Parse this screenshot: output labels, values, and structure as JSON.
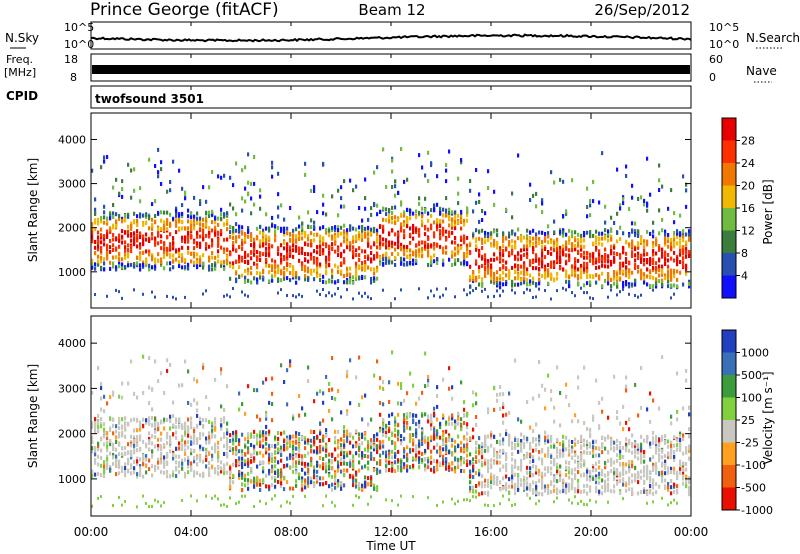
{
  "header": {
    "station": "Prince George (fitACF)",
    "beam": "Beam 12",
    "date": "26/Sep/2012"
  },
  "noise_panel": {
    "left_label": "N.Sky",
    "left_ticks": [
      "10^5",
      "10^0"
    ],
    "right_ticks": [
      "10^5",
      "10^0"
    ],
    "right_label": "N.Search"
  },
  "freq_panel": {
    "left_label_line1": "Freq.",
    "left_label_line2": "[MHz]",
    "left_ticks": [
      "18",
      "8"
    ],
    "right_ticks": [
      "60",
      "0"
    ],
    "right_label": "Nave"
  },
  "cpid_panel": {
    "label": "CPID",
    "program": "twofsound 3501"
  },
  "chart_data": [
    {
      "type": "heatmap",
      "name": "Power",
      "ylabel": "Slant Range [km]",
      "yticks": [
        "1000",
        "2000",
        "3000",
        "4000"
      ],
      "ylim": [
        180,
        4600
      ],
      "xlim_hours": [
        0,
        24
      ],
      "colorbar_label": "Power [dB]",
      "colorbar_ticks": [
        "4",
        "8",
        "12",
        "16",
        "20",
        "24",
        "28"
      ],
      "colorbar_colors": [
        "#1010ff",
        "#2850b0",
        "#3c7c3c",
        "#70bc40",
        "#f0b800",
        "#f07800",
        "#ff3000",
        "#e80000"
      ]
    },
    {
      "type": "heatmap",
      "name": "Velocity",
      "ylabel": "Slant Range [km]",
      "yticks": [
        "1000",
        "2000",
        "3000",
        "4000"
      ],
      "ylim": [
        180,
        4600
      ],
      "xlim_hours": [
        0,
        24
      ],
      "colorbar_label": "Velocity [m s⁻¹]",
      "colorbar_ticks": [
        "1000",
        "500",
        "100",
        "25",
        "-25",
        "-100",
        "-500",
        "-1000"
      ],
      "colorbar_colors": [
        "#2040c0",
        "#3a70b8",
        "#3c9c3c",
        "#80d040",
        "#c8c8c0",
        "#ffa020",
        "#f06010",
        "#e81000"
      ]
    }
  ],
  "xaxis": {
    "ticks": [
      "00:00",
      "04:00",
      "08:00",
      "12:00",
      "16:00",
      "20:00",
      "00:00"
    ],
    "label": "Time UT"
  }
}
